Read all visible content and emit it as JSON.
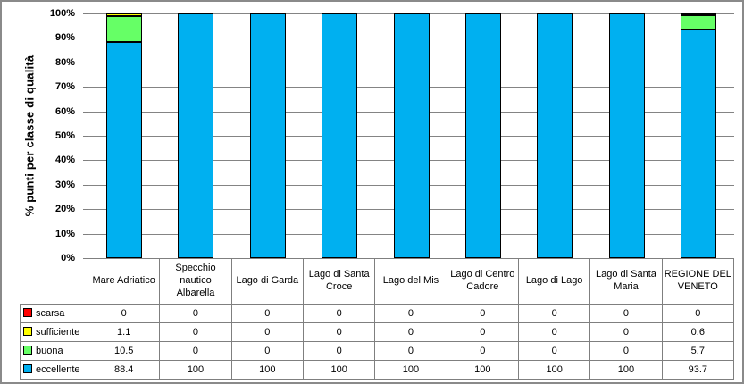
{
  "chart_data": {
    "type": "bar",
    "stacked": true,
    "title": "",
    "xlabel": "",
    "ylabel": "% punti per classe di qualità",
    "ylim": [
      0,
      100
    ],
    "y_tick_labels": [
      "0%",
      "10%",
      "20%",
      "30%",
      "40%",
      "50%",
      "60%",
      "70%",
      "80%",
      "90%",
      "100%"
    ],
    "grid": true,
    "legend_position": "table-left",
    "categories": [
      "Mare Adriatico",
      "Specchio nautico Albarella",
      "Lago di Garda",
      "Lago di Santa Croce",
      "Lago del Mis",
      "Lago di Centro Cadore",
      "Lago di Lago",
      "Lago di Santa Maria",
      "REGIONE DEL VENETO"
    ],
    "series": [
      {
        "name": "scarsa",
        "color": "#FF0000",
        "values": [
          0,
          0,
          0,
          0,
          0,
          0,
          0,
          0,
          0
        ]
      },
      {
        "name": "sufficiente",
        "color": "#FFFF00",
        "values": [
          1.1,
          0,
          0,
          0,
          0,
          0,
          0,
          0,
          0.6
        ]
      },
      {
        "name": "buona",
        "color": "#66FF66",
        "values": [
          10.5,
          0,
          0,
          0,
          0,
          0,
          0,
          0,
          5.7
        ]
      },
      {
        "name": "eccellente",
        "color": "#00B0F0",
        "values": [
          88.4,
          100,
          100,
          100,
          100,
          100,
          100,
          100,
          93.7
        ]
      }
    ],
    "colors": {
      "bar_border": "#000000",
      "gridline": "#848484",
      "axis": "#7F7F7F",
      "table_border": "#7F7F7F",
      "frame_border": "#8A8A8A",
      "background": "#FFFFFF"
    }
  }
}
